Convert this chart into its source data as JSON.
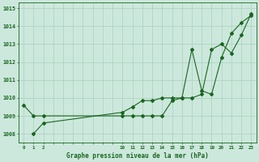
{
  "title": "Graphe pression niveau de la mer (hPa)",
  "background_color": "#cce8dc",
  "grid_color": "#aacfbf",
  "line_color": "#1a6620",
  "ylim": [
    1007.5,
    1015.3
  ],
  "yticks": [
    1008,
    1009,
    1010,
    1011,
    1012,
    1013,
    1014,
    1015
  ],
  "hours": [
    0,
    1,
    2,
    3,
    4,
    5,
    6,
    7,
    8,
    9,
    10,
    11,
    12,
    13,
    14,
    15,
    16,
    17,
    18,
    19,
    20,
    21,
    22,
    23
  ],
  "xlabels": [
    "0",
    "1",
    "2",
    "",
    "",
    "",
    "",
    "",
    "",
    "",
    "10",
    "11",
    "12",
    "13",
    "14",
    "15",
    "16",
    "17",
    "18",
    "19",
    "20",
    "21",
    "22",
    "23"
  ],
  "series1_x": [
    0,
    1,
    2,
    10,
    11,
    12,
    13,
    14,
    15,
    16,
    17,
    18,
    19,
    20,
    21,
    22,
    23
  ],
  "series1_y": [
    1009.6,
    1009.0,
    1009.0,
    1009.0,
    1009.0,
    1009.0,
    1009.0,
    1009.0,
    1009.85,
    1010.0,
    1010.0,
    1010.2,
    1012.7,
    1013.0,
    1012.5,
    1013.5,
    1014.7
  ],
  "series2_x": [
    1,
    2,
    10,
    11,
    12,
    13,
    14,
    15,
    16,
    17,
    18,
    19,
    20,
    21,
    22,
    23
  ],
  "series2_y": [
    1008.0,
    1008.6,
    1009.2,
    1009.5,
    1009.85,
    1009.85,
    1010.0,
    1010.0,
    1010.0,
    1012.7,
    1010.4,
    1010.2,
    1012.25,
    1013.6,
    1014.2,
    1014.6
  ]
}
